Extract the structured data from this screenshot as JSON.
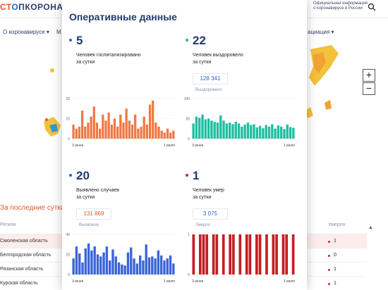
{
  "header": {
    "logo_part1": "СТ",
    "logo_ring": "О",
    "logo_part2": "ПКОРОНАВ",
    "info_line1": "Официальная информация",
    "info_line2": "о коронавирусе в России",
    "search_icon": "search-icon"
  },
  "nav": {
    "item1": "О коронавирусе ▾",
    "item2": "М",
    "item3": "ациация ▾"
  },
  "map": {
    "zoom_in": "+",
    "zoom_out": "−"
  },
  "section": {
    "title": "За последние сутки"
  },
  "table": {
    "col_region": "Регион",
    "col_dead": "Умерло",
    "rows": [
      {
        "name": "Смоленская область",
        "dead": "1",
        "dot_color": "#c62828"
      },
      {
        "name": "Белгородская область",
        "dead": "0",
        "dot_color": "#c62828"
      },
      {
        "name": "Рязанская область",
        "dead": "1",
        "dot_color": "#c62828"
      },
      {
        "name": "Курская область",
        "dead": "1",
        "dot_color": "#c62828"
      }
    ]
  },
  "card": {
    "title": "Оперативные данные",
    "stats": [
      {
        "value": "5",
        "label_line1": "Человек госпитализировано",
        "label_line2": "за сутки",
        "total": "",
        "sub": "",
        "color": "#2d64c8"
      },
      {
        "value": "22",
        "label_line1": "Человек выздоровело",
        "label_line2": "за сутки",
        "total": "128 341",
        "sub": "Выздоровело",
        "color": "#1fb8a8"
      },
      {
        "value": "20",
        "label_line1": "Выявлено случаев",
        "label_line2": "за сутки",
        "total": "131 869",
        "sub": "Выявлено",
        "color": "#2d64c8"
      },
      {
        "value": "1",
        "label_line1": "Человек умер",
        "label_line2": "за сутки",
        "total": "3 075",
        "sub": "Умерло",
        "color": "#c62828"
      }
    ]
  },
  "chart_data": [
    {
      "type": "bar",
      "color": "#f07845",
      "ylim": [
        0,
        20
      ],
      "yticks": [
        "0",
        "10",
        "20"
      ],
      "xlabels": [
        "3 июня",
        "1 июля"
      ],
      "values": [
        7,
        5,
        6,
        14,
        6,
        8,
        11,
        16,
        8,
        5,
        12,
        9,
        13,
        7,
        10,
        6,
        12,
        8,
        15,
        9,
        7,
        12,
        5,
        6,
        11,
        7,
        17,
        19,
        8,
        6,
        4,
        3,
        5,
        3,
        4
      ]
    },
    {
      "type": "bar",
      "color": "#1fbfa0",
      "ylim": [
        0,
        100
      ],
      "yticks": [
        "0",
        "50",
        "100"
      ],
      "xlabels": [
        "3 июня",
        "1 июля"
      ],
      "values": [
        38,
        55,
        52,
        60,
        48,
        50,
        45,
        42,
        40,
        58,
        45,
        38,
        40,
        36,
        42,
        38,
        30,
        35,
        40,
        34,
        36,
        28,
        32,
        26,
        34,
        30,
        36,
        25,
        33,
        30,
        24,
        35,
        29,
        27
      ]
    },
    {
      "type": "bar",
      "color": "#3a64d8",
      "ylim": [
        0,
        40
      ],
      "yticks": [
        "0",
        "20",
        "40"
      ],
      "xlabels": [
        "3 июня",
        "1 июля"
      ],
      "values": [
        16,
        28,
        21,
        12,
        26,
        31,
        24,
        28,
        20,
        18,
        22,
        28,
        14,
        25,
        18,
        12,
        10,
        9,
        22,
        27,
        16,
        11,
        19,
        14,
        30,
        17,
        18,
        16,
        24,
        19,
        14,
        16,
        19,
        11
      ]
    },
    {
      "type": "bar",
      "color": "#c41e24",
      "ylim": [
        0,
        1
      ],
      "yticks": [
        "0",
        "1"
      ],
      "xlabels": [
        "3 июня",
        "1 июля"
      ],
      "values": [
        1,
        0,
        1,
        1,
        1,
        0,
        1,
        1,
        0,
        1,
        0,
        1,
        1,
        0,
        1,
        0,
        1,
        1,
        0,
        1,
        1,
        0,
        1,
        0,
        1,
        1,
        0,
        1,
        1,
        0,
        1
      ]
    }
  ]
}
